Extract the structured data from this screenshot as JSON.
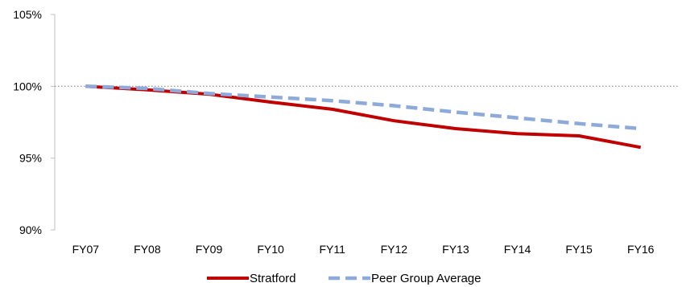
{
  "chart_data": {
    "type": "line",
    "categories": [
      "FY07",
      "FY08",
      "FY09",
      "FY10",
      "FY11",
      "FY12",
      "FY13",
      "FY14",
      "FY15",
      "FY16"
    ],
    "series": [
      {
        "name": "Stratford",
        "values": [
          100.0,
          99.75,
          99.45,
          98.9,
          98.4,
          97.6,
          97.05,
          96.7,
          96.55,
          95.75
        ],
        "color": "#c00000",
        "style": "solid"
      },
      {
        "name": "Peer Group Average",
        "values": [
          100.0,
          99.85,
          99.5,
          99.25,
          99.0,
          98.65,
          98.2,
          97.8,
          97.4,
          97.05
        ],
        "color": "#8eaadb",
        "style": "dashed"
      }
    ],
    "ylim": [
      90,
      105
    ],
    "yticks": [
      "90%",
      "95%",
      "100%",
      "105%"
    ],
    "reference_line": 100,
    "legend_position": "bottom",
    "title": "",
    "xlabel": "",
    "ylabel": ""
  }
}
